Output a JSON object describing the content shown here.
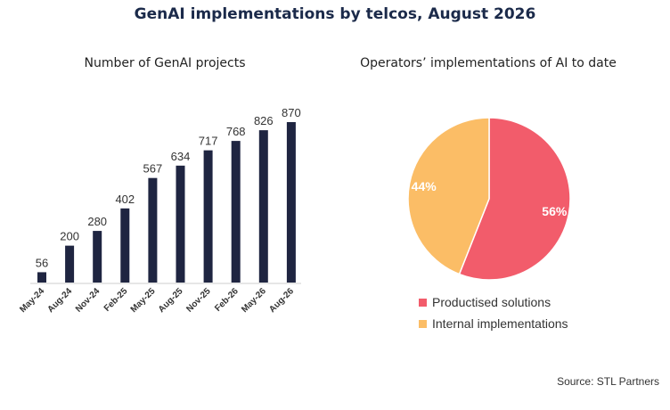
{
  "title": "GenAI implementations by telcos, August 2026",
  "source": "Source: STL Partners",
  "chart_data": [
    {
      "type": "bar",
      "title": "Number of GenAI projects",
      "categories": [
        "May-24",
        "Aug-24",
        "Nov-24",
        "Feb-25",
        "May-25",
        "Aug-25",
        "Nov-25",
        "Feb-26",
        "May-26",
        "Aug-26"
      ],
      "values": [
        56,
        200,
        280,
        402,
        567,
        634,
        717,
        768,
        826,
        870
      ],
      "color": "#1f2541",
      "ylim": [
        0,
        870
      ],
      "grid": false,
      "data_labels": true
    },
    {
      "type": "pie",
      "title": "Operators’ implementations of AI to date",
      "slices": [
        {
          "label": "Productised solutions",
          "value": 56,
          "display": "56%",
          "color": "#f25c6b"
        },
        {
          "label": "Internal implementations",
          "value": 44,
          "display": "44%",
          "color": "#fbbd66"
        }
      ],
      "legend_position": "bottom"
    }
  ]
}
